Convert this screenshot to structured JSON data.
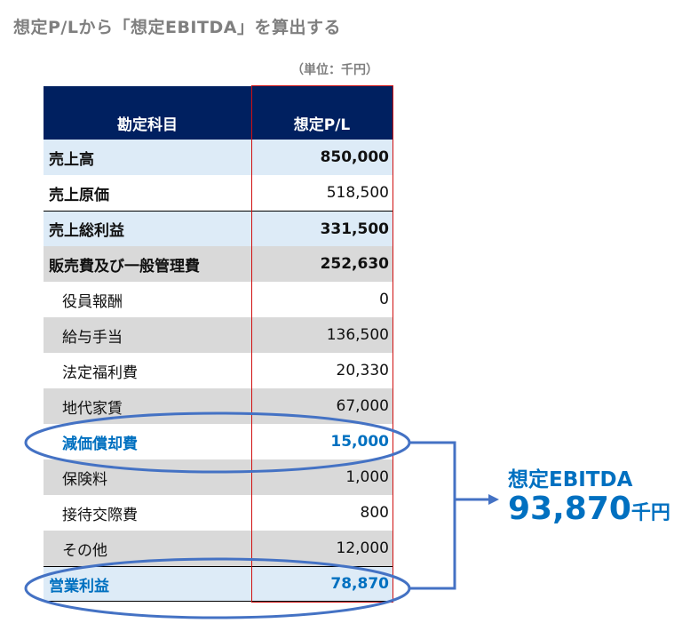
{
  "title": "想定P/Lから「想定EBITDA」を算出する",
  "unit_note": "（単位：千円）",
  "table": {
    "headers": [
      "勘定科目",
      "想定P/L"
    ],
    "rows": [
      {
        "label": "売上高",
        "value": "850,000"
      },
      {
        "label": "売上原価",
        "value": "518,500"
      },
      {
        "label": "売上総利益",
        "value": "331,500"
      },
      {
        "label": "販売費及び一般管理費",
        "value": "252,630"
      },
      {
        "label": "役員報酬",
        "value": "0"
      },
      {
        "label": "給与手当",
        "value": "136,500"
      },
      {
        "label": "法定福利費",
        "value": "20,330"
      },
      {
        "label": "地代家賃",
        "value": "67,000"
      },
      {
        "label": "減価償却費",
        "value": "15,000"
      },
      {
        "label": "保険料",
        "value": "1,000"
      },
      {
        "label": "接待交際費",
        "value": "800"
      },
      {
        "label": "その他",
        "value": "12,000"
      },
      {
        "label": "営業利益",
        "value": "78,870"
      }
    ]
  },
  "result": {
    "label": "想定EBITDA",
    "value": "93,870",
    "unit": "千円"
  },
  "colors": {
    "header_bg": "#002060",
    "highlight": "#0070c0",
    "ellipse": "#4472c4",
    "box": "#d01010",
    "row_blue": "#ddebf7",
    "row_gray": "#d9d9d9"
  }
}
